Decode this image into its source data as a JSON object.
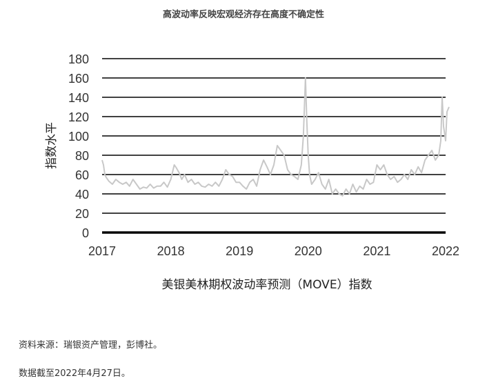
{
  "header": {
    "title": "高波动率反映宏观经济存在高度不确定性"
  },
  "footer": {
    "source": "资料来源：瑞银资产管理，彭博社。",
    "date_note": "数据截至2022年4月27日。"
  },
  "chart_data": {
    "type": "line",
    "title": "",
    "xlabel": "美银美林期权波动率预测（MOVE）指数",
    "ylabel": "指数水平",
    "ylim": [
      0,
      180
    ],
    "xlim": [
      2017,
      2022
    ],
    "yticks": [
      0,
      20,
      40,
      60,
      80,
      100,
      120,
      140,
      160,
      180
    ],
    "xticks": [
      "2017",
      "2018",
      "2019",
      "2020",
      "2021",
      "2022"
    ],
    "grid": "horizontal",
    "legend": "none",
    "line_color": "#c8c8c8",
    "grid_color": "#000000",
    "series": [
      {
        "x": [
          2017.0,
          2017.02,
          2017.04,
          2017.06,
          2017.1,
          2017.15,
          2017.2,
          2017.25,
          2017.3,
          2017.35,
          2017.4,
          2017.45,
          2017.5,
          2017.55,
          2017.6,
          2017.65,
          2017.7,
          2017.75,
          2017.8,
          2017.85,
          2017.9,
          2017.95,
          2018.0,
          2018.05,
          2018.08,
          2018.12,
          2018.16,
          2018.2,
          2018.25,
          2018.3,
          2018.35,
          2018.4,
          2018.45,
          2018.5,
          2018.55,
          2018.6,
          2018.65,
          2018.7,
          2018.75,
          2018.8,
          2018.85,
          2018.9,
          2018.95,
          2019.0,
          2019.05,
          2019.1,
          2019.15,
          2019.2,
          2019.25,
          2019.3,
          2019.35,
          2019.4,
          2019.45,
          2019.5,
          2019.55,
          2019.6,
          2019.65,
          2019.7,
          2019.75,
          2019.8,
          2019.85,
          2019.9,
          2019.93,
          2019.96,
          2019.98,
          2020.0,
          2020.02,
          2020.05,
          2020.1,
          2020.15,
          2020.2,
          2020.25,
          2020.3,
          2020.35,
          2020.4,
          2020.45,
          2020.5,
          2020.55,
          2020.6,
          2020.65,
          2020.7,
          2020.75,
          2020.8,
          2020.85,
          2020.9,
          2020.95,
          2021.0,
          2021.05,
          2021.1,
          2021.15,
          2021.2,
          2021.25,
          2021.3,
          2021.35,
          2021.4,
          2021.45,
          2021.5,
          2021.55,
          2021.6,
          2021.65,
          2021.7,
          2021.75,
          2021.8,
          2021.85,
          2021.9,
          2021.93,
          2021.95,
          2021.97,
          2022.0,
          2022.02,
          2022.05
        ],
        "y": [
          75,
          70,
          60,
          57,
          53,
          50,
          55,
          52,
          50,
          52,
          48,
          55,
          50,
          45,
          47,
          46,
          50,
          46,
          48,
          48,
          52,
          47,
          55,
          70,
          67,
          62,
          55,
          60,
          52,
          55,
          50,
          52,
          48,
          47,
          50,
          48,
          52,
          48,
          55,
          65,
          60,
          58,
          52,
          52,
          48,
          45,
          52,
          55,
          48,
          65,
          75,
          68,
          60,
          70,
          90,
          85,
          80,
          65,
          60,
          58,
          55,
          70,
          100,
          160,
          115,
          80,
          60,
          50,
          55,
          62,
          50,
          45,
          55,
          40,
          45,
          40,
          38,
          45,
          40,
          50,
          42,
          48,
          45,
          55,
          50,
          52,
          70,
          65,
          70,
          60,
          55,
          58,
          52,
          55,
          60,
          55,
          65,
          60,
          68,
          62,
          75,
          80,
          85,
          75,
          80,
          95,
          140,
          110,
          95,
          125,
          130
        ]
      }
    ]
  }
}
